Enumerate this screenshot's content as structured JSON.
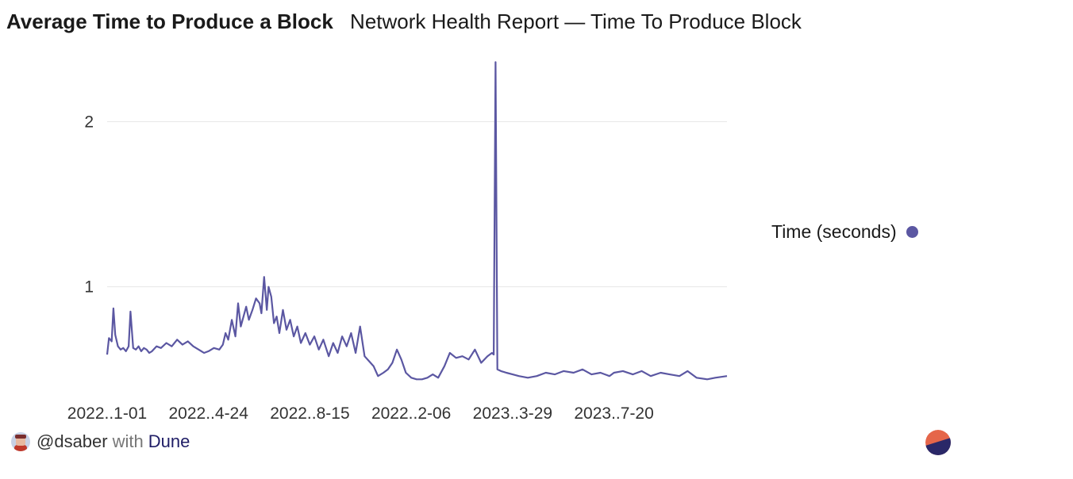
{
  "header": {
    "title": "Average Time to Produce a Block",
    "subtitle": "Network Health Report — Time To Produce Block"
  },
  "legend": {
    "label": "Time (seconds)"
  },
  "footer": {
    "handle": "@dsaber",
    "with": "with",
    "brand": "Dune"
  },
  "colors": {
    "series": "#5b57a2",
    "grid": "#e6e6e6",
    "dune_orange": "#e5664a",
    "dune_navy": "#2a2868"
  },
  "icons": {
    "avatar": "user-avatar-icon",
    "logo": "dune-logo-icon"
  },
  "chart_data": {
    "type": "line",
    "title": "Average Time to Produce a Block",
    "xlabel": "",
    "ylabel": "",
    "ylim": [
      0.36,
      2.4
    ],
    "yticks": [
      1,
      2
    ],
    "xlim": [
      "2022-01-01",
      "2023-11-23"
    ],
    "xticks": [
      {
        "date": "2022-01-01",
        "label": "2022..1-01"
      },
      {
        "date": "2022-04-24",
        "label": "2022..4-24"
      },
      {
        "date": "2022-08-15",
        "label": "2022..8-15"
      },
      {
        "date": "2022-12-06",
        "label": "2022..2-06"
      },
      {
        "date": "2023-03-29",
        "label": "2023..3-29"
      },
      {
        "date": "2023-07-20",
        "label": "2023..7-20"
      }
    ],
    "grid": "horizontal",
    "legend_position": "right",
    "series": [
      {
        "name": "Time (seconds)",
        "x": [
          "2022-01-01",
          "2022-01-03",
          "2022-01-06",
          "2022-01-08",
          "2022-01-10",
          "2022-01-13",
          "2022-01-16",
          "2022-01-19",
          "2022-01-22",
          "2022-01-25",
          "2022-01-27",
          "2022-01-30",
          "2022-02-02",
          "2022-02-05",
          "2022-02-08",
          "2022-02-11",
          "2022-02-14",
          "2022-02-17",
          "2022-02-20",
          "2022-02-25",
          "2022-03-02",
          "2022-03-08",
          "2022-03-14",
          "2022-03-20",
          "2022-03-26",
          "2022-04-01",
          "2022-04-07",
          "2022-04-13",
          "2022-04-19",
          "2022-04-24",
          "2022-04-30",
          "2022-05-06",
          "2022-05-10",
          "2022-05-13",
          "2022-05-16",
          "2022-05-20",
          "2022-05-24",
          "2022-05-27",
          "2022-05-30",
          "2022-06-02",
          "2022-06-05",
          "2022-06-08",
          "2022-06-12",
          "2022-06-16",
          "2022-06-20",
          "2022-06-22",
          "2022-06-25",
          "2022-06-28",
          "2022-06-30",
          "2022-07-03",
          "2022-07-06",
          "2022-07-09",
          "2022-07-12",
          "2022-07-16",
          "2022-07-20",
          "2022-07-24",
          "2022-07-28",
          "2022-08-01",
          "2022-08-05",
          "2022-08-10",
          "2022-08-15",
          "2022-08-20",
          "2022-08-25",
          "2022-08-30",
          "2022-09-05",
          "2022-09-10",
          "2022-09-15",
          "2022-09-20",
          "2022-09-25",
          "2022-09-30",
          "2022-10-05",
          "2022-10-10",
          "2022-10-15",
          "2022-10-20",
          "2022-10-25",
          "2022-10-30",
          "2022-11-05",
          "2022-11-10",
          "2022-11-15",
          "2022-11-20",
          "2022-11-25",
          "2022-11-30",
          "2022-12-06",
          "2022-12-12",
          "2022-12-18",
          "2022-12-24",
          "2022-12-30",
          "2023-01-05",
          "2023-01-12",
          "2023-01-18",
          "2023-01-25",
          "2023-02-01",
          "2023-02-08",
          "2023-02-15",
          "2023-02-22",
          "2023-03-01",
          "2023-03-06",
          "2023-03-08",
          "2023-03-10",
          "2023-03-12",
          "2023-03-16",
          "2023-03-22",
          "2023-03-29",
          "2023-04-05",
          "2023-04-15",
          "2023-04-25",
          "2023-05-05",
          "2023-05-15",
          "2023-05-25",
          "2023-06-05",
          "2023-06-15",
          "2023-06-25",
          "2023-07-05",
          "2023-07-15",
          "2023-07-20",
          "2023-07-30",
          "2023-08-10",
          "2023-08-20",
          "2023-08-30",
          "2023-09-10",
          "2023-09-20",
          "2023-10-01",
          "2023-10-10",
          "2023-10-20",
          "2023-11-01",
          "2023-11-10",
          "2023-11-23"
        ],
        "y": [
          0.59,
          0.69,
          0.67,
          0.87,
          0.71,
          0.64,
          0.62,
          0.63,
          0.61,
          0.64,
          0.85,
          0.63,
          0.62,
          0.64,
          0.61,
          0.63,
          0.62,
          0.6,
          0.61,
          0.64,
          0.63,
          0.66,
          0.64,
          0.68,
          0.65,
          0.67,
          0.64,
          0.62,
          0.6,
          0.61,
          0.63,
          0.62,
          0.65,
          0.72,
          0.68,
          0.8,
          0.7,
          0.9,
          0.76,
          0.82,
          0.88,
          0.8,
          0.86,
          0.93,
          0.9,
          0.84,
          1.06,
          0.86,
          1.0,
          0.94,
          0.78,
          0.82,
          0.72,
          0.86,
          0.74,
          0.8,
          0.7,
          0.76,
          0.66,
          0.72,
          0.65,
          0.7,
          0.62,
          0.68,
          0.58,
          0.66,
          0.6,
          0.7,
          0.64,
          0.72,
          0.6,
          0.76,
          0.58,
          0.55,
          0.52,
          0.46,
          0.48,
          0.5,
          0.54,
          0.62,
          0.56,
          0.48,
          0.45,
          0.44,
          0.44,
          0.45,
          0.47,
          0.45,
          0.52,
          0.6,
          0.57,
          0.58,
          0.56,
          0.62,
          0.54,
          0.58,
          0.6,
          0.59,
          2.36,
          0.5,
          0.49,
          0.48,
          0.47,
          0.46,
          0.45,
          0.46,
          0.48,
          0.47,
          0.49,
          0.48,
          0.5,
          0.47,
          0.48,
          0.46,
          0.48,
          0.49,
          0.47,
          0.49,
          0.46,
          0.48,
          0.47,
          0.46,
          0.49,
          0.45,
          0.44,
          0.45,
          0.46
        ]
      }
    ]
  }
}
